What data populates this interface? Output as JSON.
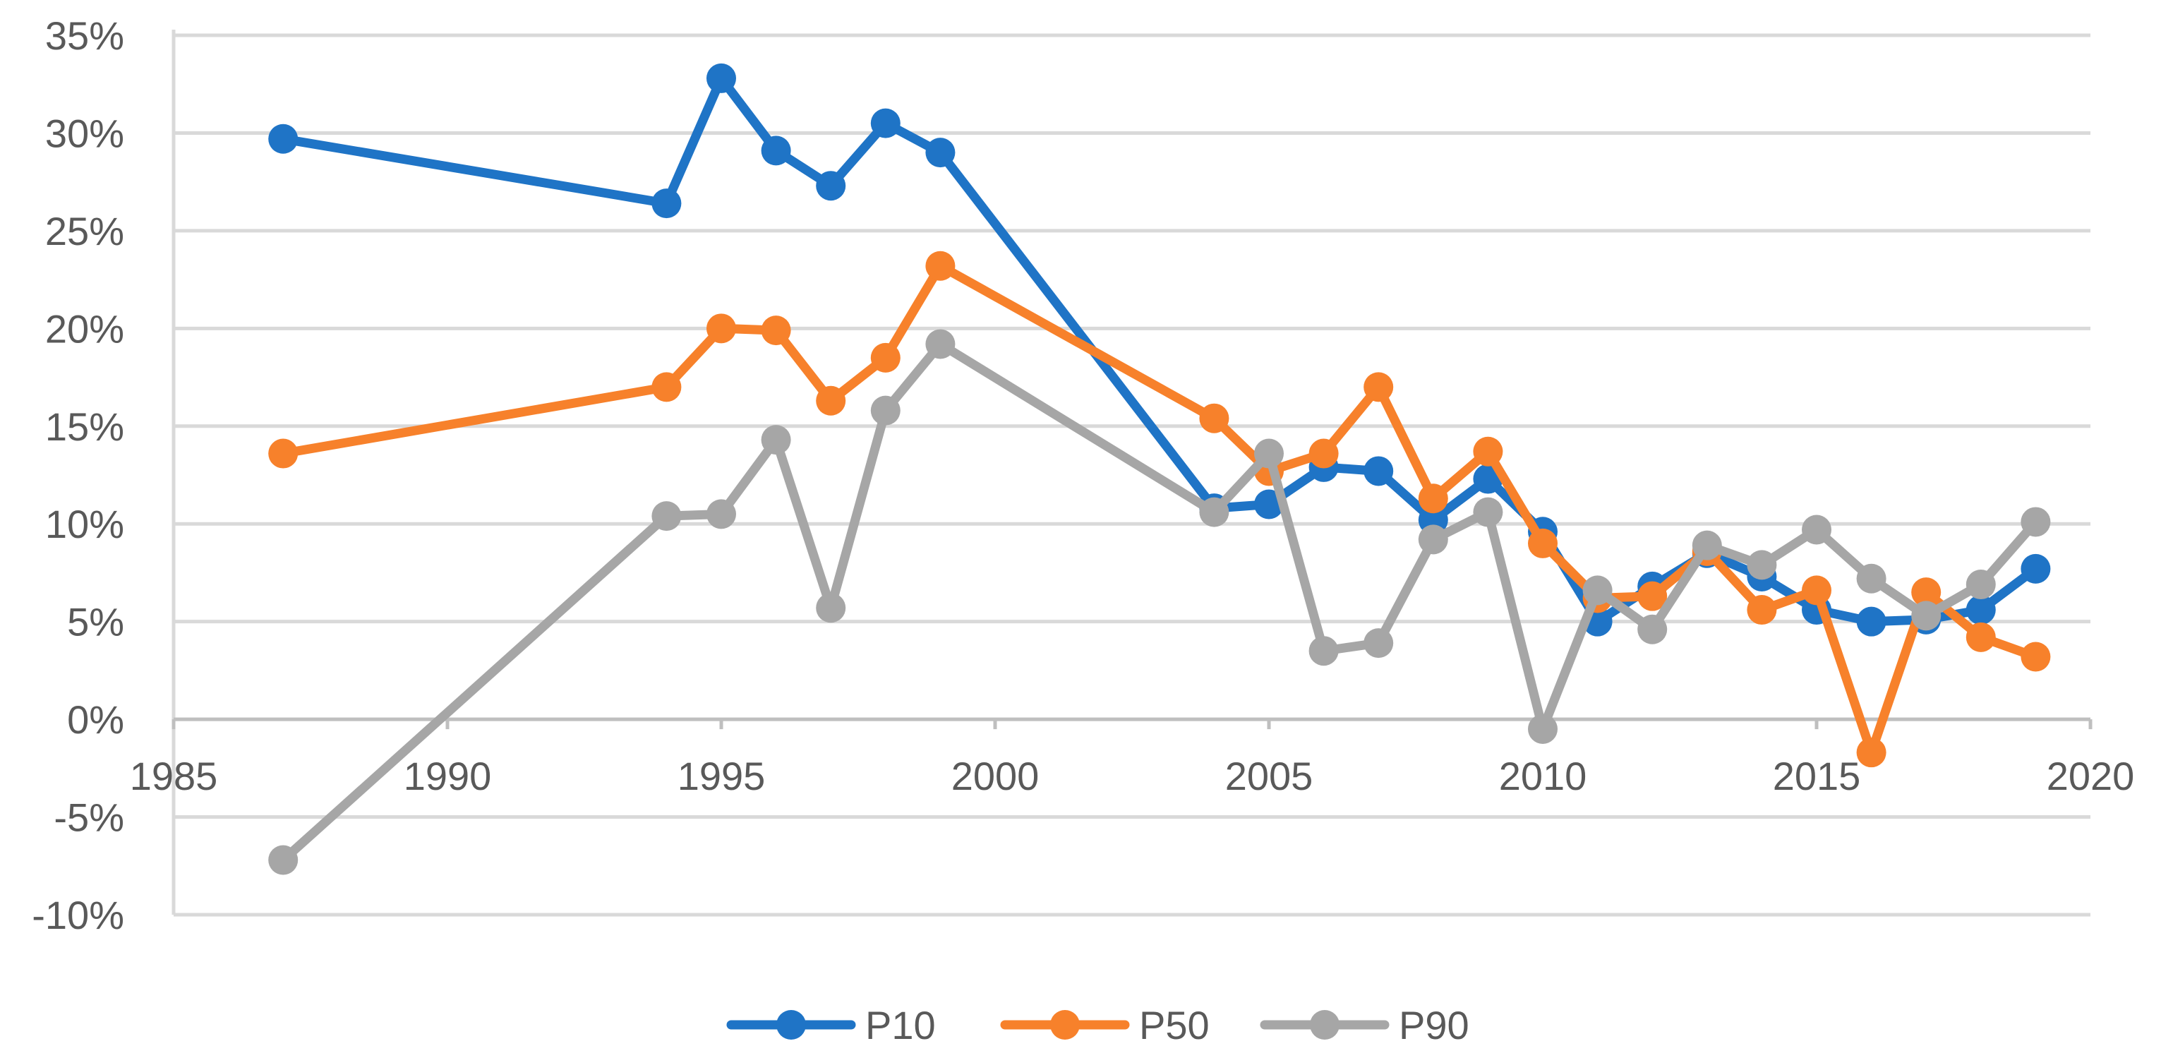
{
  "chart_data": {
    "type": "line",
    "title": "",
    "xlabel": "",
    "ylabel": "",
    "xlim": [
      1985,
      2020
    ],
    "ylim": [
      -10,
      35
    ],
    "x_ticks": [
      1985,
      1990,
      1995,
      2000,
      2005,
      2010,
      2015,
      2020
    ],
    "y_ticks": [
      -10,
      -5,
      0,
      5,
      10,
      15,
      20,
      25,
      30,
      35
    ],
    "y_tick_format": "percent",
    "grid": "horizontal",
    "legend_position": "bottom",
    "series": [
      {
        "name": "P10",
        "color": "#1F74C6",
        "x": [
          1987,
          1994,
          1995,
          1996,
          1997,
          1998,
          1999,
          2004,
          2005,
          2006,
          2007,
          2008,
          2009,
          2010,
          2011,
          2012,
          2013,
          2014,
          2015,
          2016,
          2017,
          2018,
          2019
        ],
        "y": [
          29.7,
          26.4,
          32.8,
          29.1,
          27.3,
          30.5,
          29.0,
          10.8,
          11.0,
          12.9,
          12.7,
          10.2,
          12.3,
          9.6,
          5.0,
          6.8,
          8.5,
          7.3,
          5.6,
          5.0,
          5.1,
          5.6,
          7.7
        ]
      },
      {
        "name": "P50",
        "color": "#F7812B",
        "x": [
          1987,
          1994,
          1995,
          1996,
          1997,
          1998,
          1999,
          2004,
          2005,
          2006,
          2007,
          2008,
          2009,
          2010,
          2011,
          2012,
          2013,
          2014,
          2015,
          2016,
          2017,
          2018,
          2019
        ],
        "y": [
          13.6,
          17.0,
          20.0,
          19.9,
          16.3,
          18.5,
          23.2,
          15.4,
          12.7,
          13.6,
          17.0,
          11.3,
          13.7,
          9.0,
          6.2,
          6.3,
          8.6,
          5.6,
          6.6,
          -1.7,
          6.5,
          4.2,
          3.2
        ]
      },
      {
        "name": "P90",
        "color": "#A6A6A6",
        "x": [
          1987,
          1994,
          1995,
          1996,
          1997,
          1998,
          1999,
          2004,
          2005,
          2006,
          2007,
          2008,
          2009,
          2010,
          2011,
          2012,
          2013,
          2014,
          2015,
          2016,
          2017,
          2018,
          2019
        ],
        "y": [
          -7.2,
          10.4,
          10.5,
          14.3,
          5.7,
          15.8,
          19.2,
          10.6,
          13.6,
          3.5,
          3.9,
          9.2,
          10.6,
          -0.5,
          6.6,
          4.6,
          8.9,
          7.9,
          9.7,
          7.2,
          5.3,
          6.9,
          10.1
        ]
      }
    ]
  }
}
